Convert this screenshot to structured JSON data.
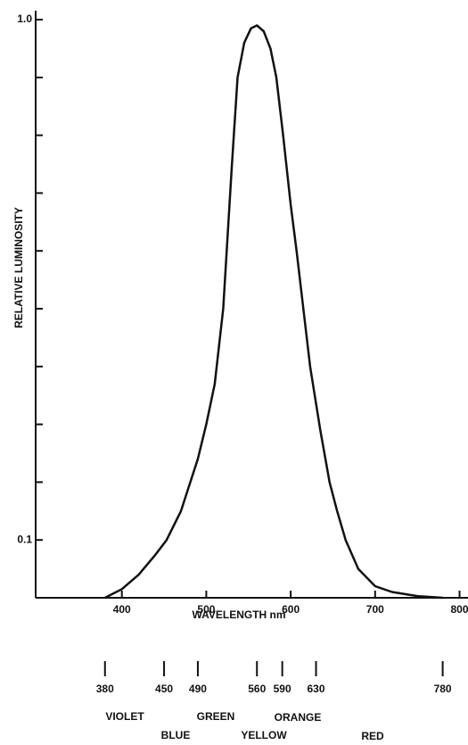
{
  "chart_data": {
    "type": "line",
    "x_label": "WAVELENGTH nm",
    "y_label": "RELATIVE LUMINOSITY",
    "xlim": [
      300,
      810
    ],
    "ylim": [
      0,
      1
    ],
    "xticks": [
      400,
      500,
      600,
      700,
      800
    ],
    "yticks": [
      0.1,
      {
        "value": 1,
        "label": "1.0"
      }
    ],
    "y_minor_ticks": [
      0.2,
      0.3,
      0.4,
      0.5,
      0.6,
      0.7,
      0.8,
      0.9
    ],
    "color": "#111111",
    "x": [
      380,
      400,
      420,
      440,
      453,
      470,
      490,
      500,
      510,
      520,
      530,
      537,
      545,
      553,
      560,
      568,
      576,
      583,
      591,
      600,
      607,
      615,
      623,
      635,
      646,
      655,
      665,
      680,
      700,
      720,
      750,
      780
    ],
    "values": [
      0,
      0.015,
      0.04,
      0.075,
      0.1,
      0.15,
      0.24,
      0.3,
      0.37,
      0.5,
      0.74,
      0.9,
      0.96,
      0.985,
      0.99,
      0.98,
      0.95,
      0.9,
      0.8,
      0.68,
      0.6,
      0.5,
      0.4,
      0.29,
      0.2,
      0.15,
      0.1,
      0.05,
      0.02,
      0.01,
      0.003,
      0
    ],
    "wavelength_marks": [
      380,
      450,
      490,
      560,
      590,
      630,
      780
    ],
    "color_names_row1": [
      "VIOLET",
      "GREEN",
      "ORANGE"
    ],
    "color_names_row2": [
      "BLUE",
      "YELLOW",
      "RED"
    ]
  }
}
